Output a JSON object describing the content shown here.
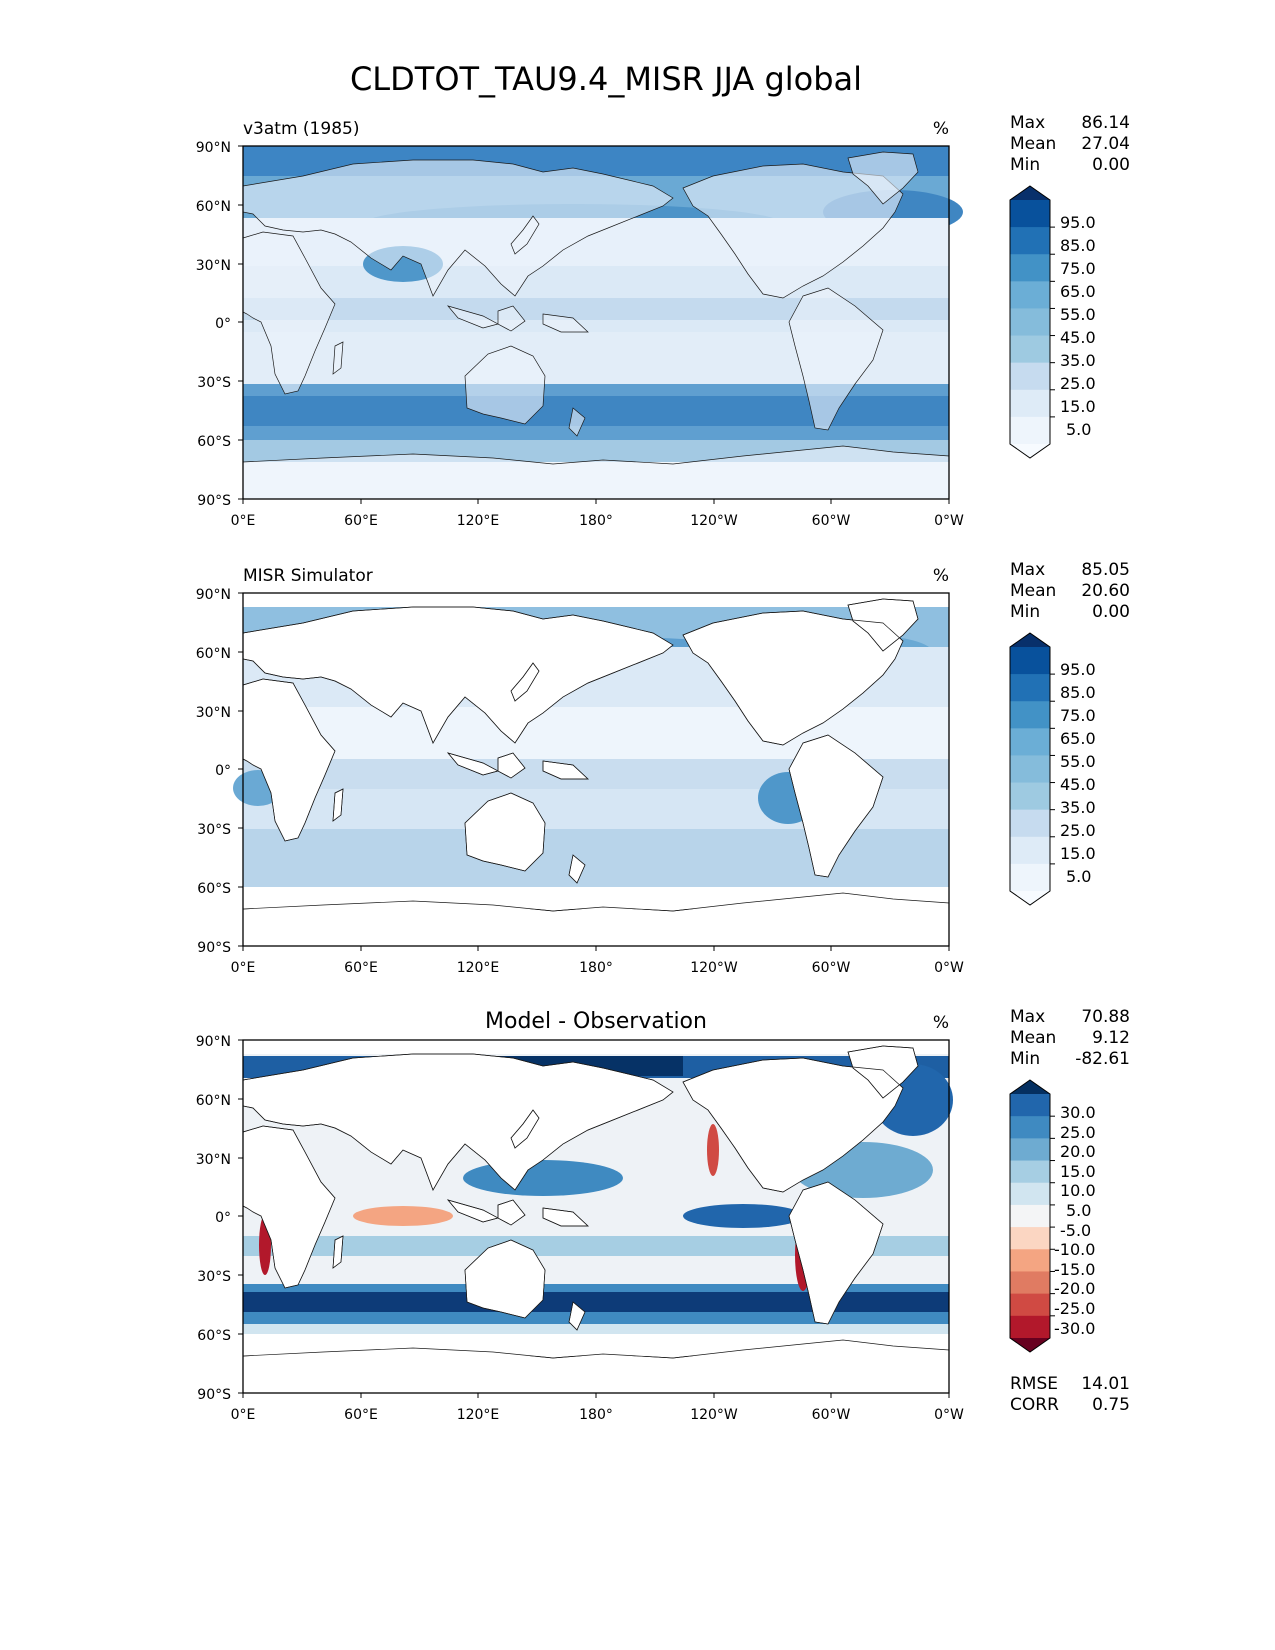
{
  "figure": {
    "title": "CLDTOT_TAU9.4_MISR JJA global"
  },
  "axes": {
    "lat_ticks": [
      "90°N",
      "60°N",
      "30°N",
      "0°",
      "30°S",
      "60°S",
      "90°S"
    ],
    "lon_ticks": [
      "0°E",
      "60°E",
      "120°E",
      "180°",
      "120°W",
      "60°W",
      "0°W"
    ]
  },
  "panels": [
    {
      "left_title": "v3atm (1985)",
      "center_title": "",
      "units": "%",
      "stats": [
        {
          "label": "Max",
          "value": "86.14"
        },
        {
          "label": "Mean",
          "value": "27.04"
        },
        {
          "label": "Min",
          "value": "0.00"
        }
      ],
      "colorbar": {
        "labels": [
          "95.0",
          "85.0",
          "75.0",
          "65.0",
          "55.0",
          "45.0",
          "35.0",
          "25.0",
          "15.0",
          "5.0"
        ],
        "colors": [
          "#08306b",
          "#08519c",
          "#2171b5",
          "#4292c6",
          "#6baed6",
          "#85bcdb",
          "#9ecae1",
          "#c6dbef",
          "#deebf7",
          "#eef5fc",
          "#f7fbff"
        ]
      },
      "extra_stats": []
    },
    {
      "left_title": "MISR Simulator",
      "center_title": "",
      "units": "%",
      "stats": [
        {
          "label": "Max",
          "value": "85.05"
        },
        {
          "label": "Mean",
          "value": "20.60"
        },
        {
          "label": "Min",
          "value": "0.00"
        }
      ],
      "colorbar": {
        "labels": [
          "95.0",
          "85.0",
          "75.0",
          "65.0",
          "55.0",
          "45.0",
          "35.0",
          "25.0",
          "15.0",
          "5.0"
        ],
        "colors": [
          "#08306b",
          "#08519c",
          "#2171b5",
          "#4292c6",
          "#6baed6",
          "#85bcdb",
          "#9ecae1",
          "#c6dbef",
          "#deebf7",
          "#eef5fc",
          "#f7fbff"
        ]
      },
      "extra_stats": []
    },
    {
      "left_title": "",
      "center_title": "Model - Observation",
      "units": "%",
      "stats": [
        {
          "label": "Max",
          "value": "70.88"
        },
        {
          "label": "Mean",
          "value": "9.12"
        },
        {
          "label": "Min",
          "value": "-82.61"
        }
      ],
      "colorbar": {
        "labels": [
          "30.0",
          "25.0",
          "20.0",
          "15.0",
          "10.0",
          "5.0",
          "-5.0",
          "-10.0",
          "-15.0",
          "-20.0",
          "-25.0",
          "-30.0"
        ],
        "colors": [
          "#053061",
          "#2166ac",
          "#3f8ac1",
          "#6eabd1",
          "#a6cee3",
          "#d1e5f0",
          "#f4f5f6",
          "#fbd6c2",
          "#f4a582",
          "#e07b62",
          "#d04a43",
          "#b2182b",
          "#67001f"
        ]
      },
      "extra_stats": [
        {
          "label": "RMSE",
          "value": "14.01"
        },
        {
          "label": "CORR",
          "value": "0.75"
        }
      ]
    }
  ]
}
